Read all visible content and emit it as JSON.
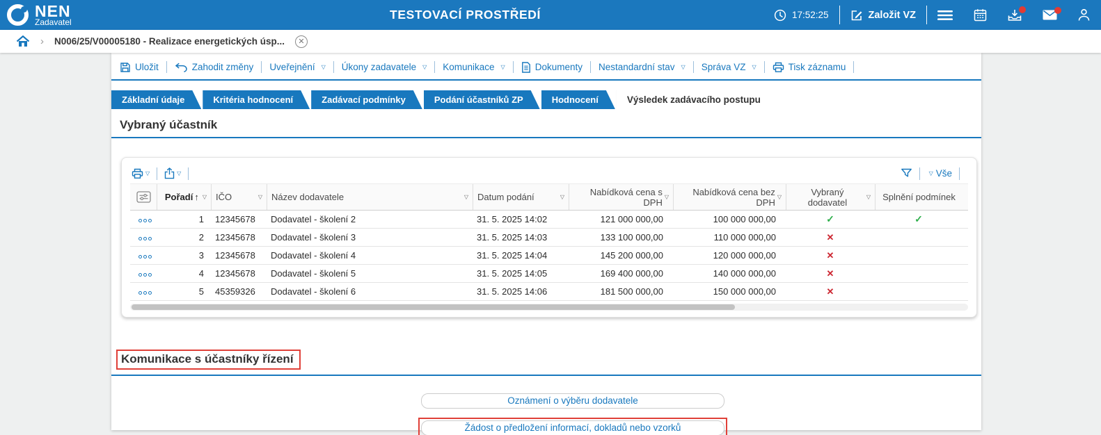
{
  "header": {
    "brand": "NEN",
    "brand_sub": "Zadavatel",
    "env_title": "TESTOVACÍ PROSTŘEDÍ",
    "time": "17:52:25",
    "create_vz_label": "Založit VZ",
    "icon_buttons": [
      {
        "name": "menu-icon",
        "badge": false
      },
      {
        "name": "calendar-icon",
        "badge": false
      },
      {
        "name": "inbox-icon",
        "badge": true
      },
      {
        "name": "mail-icon",
        "badge": true
      },
      {
        "name": "user-icon",
        "badge": false
      }
    ]
  },
  "breadcrumb": {
    "home_icon": "home-icon",
    "item": "N006/25/V00005180 - Realizace energetických úsp...",
    "close_icon": "close-icon"
  },
  "toolbar": {
    "items": [
      {
        "label": "Uložit",
        "icon": "save-icon",
        "dropdown": false
      },
      {
        "label": "Zahodit změny",
        "icon": "undo-icon",
        "dropdown": false
      },
      {
        "label": "Uveřejnění",
        "icon": null,
        "dropdown": true
      },
      {
        "label": "Úkony zadavatele",
        "icon": null,
        "dropdown": true
      },
      {
        "label": "Komunikace",
        "icon": null,
        "dropdown": true
      },
      {
        "label": "Dokumenty",
        "icon": "document-icon",
        "dropdown": false
      },
      {
        "label": "Nestandardní stav",
        "icon": null,
        "dropdown": true
      },
      {
        "label": "Správa VZ",
        "icon": null,
        "dropdown": true
      },
      {
        "label": "Tisk záznamu",
        "icon": "printer-icon",
        "dropdown": false
      }
    ]
  },
  "tabs": [
    {
      "label": "Základní údaje",
      "active": false
    },
    {
      "label": "Kritéria hodnocení",
      "active": false
    },
    {
      "label": "Zadávací podmínky",
      "active": false
    },
    {
      "label": "Podání účastníků ZP",
      "active": false
    },
    {
      "label": "Hodnocení",
      "active": false
    },
    {
      "label": "Výsledek zadávacího postupu",
      "active": true
    }
  ],
  "sections": {
    "selected_participant": "Vybraný účastník",
    "communication": "Komunikace s účastníky řízení"
  },
  "grid_toolbar": {
    "print_icon": "printer-icon",
    "export_icon": "export-icon",
    "filter_icon": "funnel-icon",
    "filter_all_label": "Vše"
  },
  "table": {
    "columns": [
      {
        "label": "",
        "icon": "column-settings-icon",
        "cls": "c0",
        "bold": false,
        "sorted": null,
        "filter": false
      },
      {
        "label": "Pořadí",
        "icon": null,
        "cls": "c1",
        "bold": true,
        "sorted": "asc",
        "filter": true
      },
      {
        "label": "IČO",
        "icon": null,
        "cls": "c2",
        "bold": false,
        "sorted": null,
        "filter": true
      },
      {
        "label": "Název dodavatele",
        "icon": null,
        "cls": "c3",
        "bold": false,
        "sorted": null,
        "filter": true
      },
      {
        "label": "Datum podání",
        "icon": null,
        "cls": "c4",
        "bold": false,
        "sorted": null,
        "filter": true
      },
      {
        "label": "Nabídková cena s DPH",
        "icon": null,
        "cls": "c5",
        "bold": false,
        "sorted": null,
        "filter": true
      },
      {
        "label": "Nabídková cena bez DPH",
        "icon": null,
        "cls": "c6",
        "bold": false,
        "sorted": null,
        "filter": true
      },
      {
        "label": "Vybraný dodavatel",
        "icon": null,
        "cls": "c7",
        "bold": false,
        "sorted": null,
        "filter": true
      },
      {
        "label": "Splnění podmínek",
        "icon": null,
        "cls": "c8",
        "bold": false,
        "sorted": null,
        "filter": false
      }
    ],
    "rows": [
      {
        "poradi": "1",
        "ico": "12345678",
        "nazev": "Dodavatel - školení 2",
        "datum": "31. 5. 2025 14:02",
        "cena_s_dph": "121 000 000,00",
        "cena_bez_dph": "100 000 000,00",
        "vybrany": "yes",
        "splneni": "yes"
      },
      {
        "poradi": "2",
        "ico": "12345678",
        "nazev": "Dodavatel - školení 3",
        "datum": "31. 5. 2025 14:03",
        "cena_s_dph": "133 100 000,00",
        "cena_bez_dph": "110 000 000,00",
        "vybrany": "no",
        "splneni": ""
      },
      {
        "poradi": "3",
        "ico": "12345678",
        "nazev": "Dodavatel - školení 4",
        "datum": "31. 5. 2025 14:04",
        "cena_s_dph": "145 200 000,00",
        "cena_bez_dph": "120 000 000,00",
        "vybrany": "no",
        "splneni": ""
      },
      {
        "poradi": "4",
        "ico": "12345678",
        "nazev": "Dodavatel - školení 5",
        "datum": "31. 5. 2025 14:05",
        "cena_s_dph": "169 400 000,00",
        "cena_bez_dph": "140 000 000,00",
        "vybrany": "no",
        "splneni": ""
      },
      {
        "poradi": "5",
        "ico": "45359326",
        "nazev": "Dodavatel - školení 6",
        "datum": "31. 5. 2025 14:06",
        "cena_s_dph": "181 500 000,00",
        "cena_bez_dph": "150 000 000,00",
        "vybrany": "no",
        "splneni": ""
      }
    ]
  },
  "communication_buttons": [
    {
      "label": "Oznámení o výběru dodavatele",
      "highlighted": false
    },
    {
      "label": "Žádost o předložení informací, dokladů nebo vzorků",
      "highlighted": true
    }
  ],
  "colors": {
    "header_bg": "#1b78be",
    "accent_blue": "#1878be",
    "annotation_red": "#e04038",
    "check_green": "#2eaf4b",
    "cross_red": "#cc2631",
    "badge_red": "#e23b34"
  }
}
